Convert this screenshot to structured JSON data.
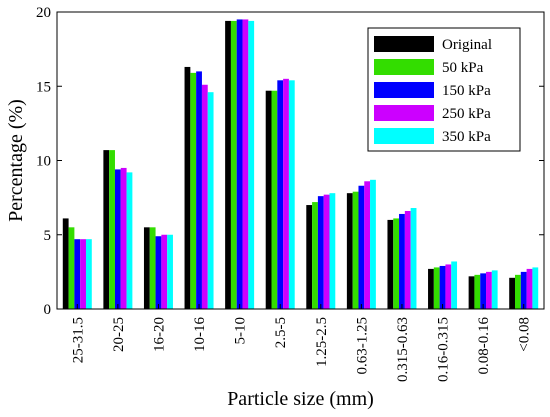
{
  "chart_data": {
    "type": "bar",
    "xlabel": "Particle size (mm)",
    "ylabel": "Percentage (%)",
    "ylim": [
      0,
      20
    ],
    "yticks": [
      0,
      5,
      10,
      15,
      20
    ],
    "grid": false,
    "legend_position": "top-right",
    "categories": [
      "25-31.5",
      "20-25",
      "16-20",
      "10-16",
      "5-10",
      "2.5-5",
      "1.25-2.5",
      "0.63-1.25",
      "0.315-0.63",
      "0.16-0.315",
      "0.08-0.16",
      "<0.08"
    ],
    "series": [
      {
        "name": "Original",
        "color": "#000000",
        "values": [
          6.1,
          10.7,
          5.5,
          16.3,
          19.4,
          14.7,
          7.0,
          7.8,
          6.0,
          2.7,
          2.2,
          2.1
        ]
      },
      {
        "name": "50 kPa",
        "color": "#33dd00",
        "values": [
          5.5,
          10.7,
          5.5,
          15.9,
          19.4,
          14.7,
          7.2,
          7.9,
          6.1,
          2.8,
          2.3,
          2.3
        ]
      },
      {
        "name": "150 kPa",
        "color": "#0000ff",
        "values": [
          4.7,
          9.4,
          4.9,
          16.0,
          19.5,
          15.4,
          7.6,
          8.3,
          6.4,
          2.9,
          2.4,
          2.5
        ]
      },
      {
        "name": "250 kPa",
        "color": "#cc00ff",
        "values": [
          4.7,
          9.5,
          5.0,
          15.1,
          19.5,
          15.5,
          7.7,
          8.6,
          6.6,
          3.0,
          2.5,
          2.7
        ]
      },
      {
        "name": "350 kPa",
        "color": "#00ffff",
        "values": [
          4.7,
          9.2,
          5.0,
          14.6,
          19.4,
          15.4,
          7.8,
          8.7,
          6.8,
          3.2,
          2.6,
          2.8
        ]
      }
    ]
  }
}
